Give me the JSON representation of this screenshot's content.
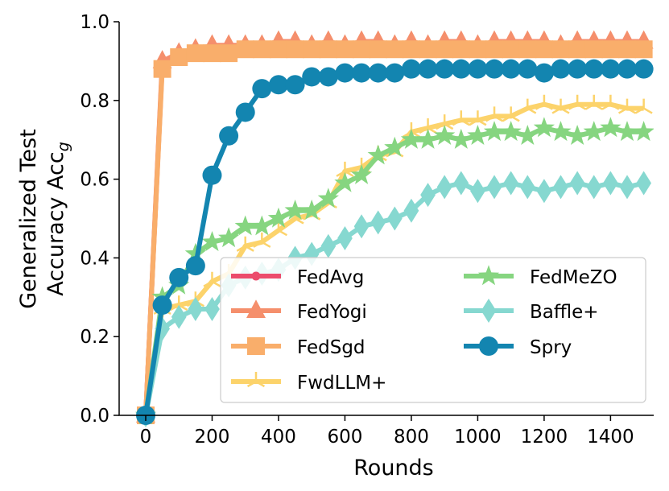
{
  "chart_data": {
    "type": "line",
    "xlabel": "Rounds",
    "ylabel_line1": "Generalized Test",
    "ylabel_line2": "Accuracy Acc",
    "ylabel_sub": "g",
    "xlim": [
      -80,
      1530
    ],
    "ylim": [
      0.0,
      1.0
    ],
    "xticks": [
      0,
      200,
      400,
      600,
      800,
      1000,
      1200,
      1400
    ],
    "yticks": [
      0.0,
      0.2,
      0.4,
      0.6,
      0.8,
      1.0
    ],
    "ytick_labels": [
      "0.0",
      "0.2",
      "0.4",
      "0.6",
      "0.8",
      "1.0"
    ],
    "grid": false,
    "legend_position": "lower-right",
    "series": [
      {
        "name": "FedAvg",
        "color": "#ec4c6c",
        "marker": "circle-small",
        "x": [
          0,
          50,
          100,
          150,
          200,
          250,
          300,
          350,
          400,
          450,
          500,
          550,
          600,
          650,
          700,
          750,
          800,
          850,
          900,
          950,
          1000,
          1050,
          1100,
          1150,
          1200,
          1250,
          1300,
          1350,
          1400,
          1450,
          1500
        ],
        "y": [
          0.0,
          0.89,
          0.91,
          0.92,
          0.93,
          0.93,
          0.93,
          0.94,
          0.94,
          0.94,
          0.94,
          0.94,
          0.94,
          0.94,
          0.94,
          0.94,
          0.94,
          0.94,
          0.94,
          0.94,
          0.94,
          0.94,
          0.94,
          0.94,
          0.94,
          0.94,
          0.94,
          0.94,
          0.94,
          0.94,
          0.94
        ]
      },
      {
        "name": "FedYogi",
        "color": "#f58f6c",
        "marker": "triangle",
        "x": [
          0,
          50,
          100,
          150,
          200,
          250,
          300,
          350,
          400,
          450,
          500,
          550,
          600,
          650,
          700,
          750,
          800,
          850,
          900,
          950,
          1000,
          1050,
          1100,
          1150,
          1200,
          1250,
          1300,
          1350,
          1400,
          1450,
          1500
        ],
        "y": [
          0.0,
          0.9,
          0.92,
          0.93,
          0.94,
          0.94,
          0.94,
          0.94,
          0.95,
          0.95,
          0.94,
          0.95,
          0.94,
          0.95,
          0.95,
          0.94,
          0.95,
          0.94,
          0.95,
          0.95,
          0.94,
          0.95,
          0.95,
          0.95,
          0.95,
          0.94,
          0.95,
          0.95,
          0.95,
          0.95,
          0.95
        ]
      },
      {
        "name": "FedSgd",
        "color": "#f9ae6b",
        "marker": "square",
        "x": [
          0,
          50,
          100,
          150,
          200,
          250,
          300,
          350,
          400,
          450,
          500,
          550,
          600,
          650,
          700,
          750,
          800,
          850,
          900,
          950,
          1000,
          1050,
          1100,
          1150,
          1200,
          1250,
          1300,
          1350,
          1400,
          1450,
          1500
        ],
        "y": [
          0.0,
          0.88,
          0.91,
          0.92,
          0.92,
          0.92,
          0.93,
          0.93,
          0.93,
          0.93,
          0.93,
          0.93,
          0.93,
          0.93,
          0.93,
          0.93,
          0.93,
          0.93,
          0.93,
          0.93,
          0.93,
          0.93,
          0.93,
          0.93,
          0.93,
          0.93,
          0.93,
          0.93,
          0.93,
          0.93,
          0.93
        ]
      },
      {
        "name": "FwdLLM+",
        "color": "#fcd36b",
        "marker": "tri",
        "x": [
          0,
          50,
          100,
          150,
          200,
          250,
          300,
          350,
          400,
          450,
          500,
          550,
          600,
          650,
          700,
          750,
          800,
          850,
          900,
          950,
          1000,
          1050,
          1100,
          1150,
          1200,
          1250,
          1300,
          1350,
          1400,
          1450,
          1500
        ],
        "y": [
          0.0,
          0.27,
          0.28,
          0.29,
          0.34,
          0.36,
          0.43,
          0.44,
          0.47,
          0.5,
          0.51,
          0.54,
          0.62,
          0.63,
          0.66,
          0.67,
          0.72,
          0.73,
          0.74,
          0.75,
          0.75,
          0.76,
          0.76,
          0.78,
          0.79,
          0.78,
          0.79,
          0.79,
          0.79,
          0.78,
          0.78
        ]
      },
      {
        "name": "FedMeZO",
        "color": "#86d580",
        "marker": "star",
        "x": [
          0,
          50,
          100,
          150,
          200,
          250,
          300,
          350,
          400,
          450,
          500,
          550,
          600,
          650,
          700,
          750,
          800,
          850,
          900,
          950,
          1000,
          1050,
          1100,
          1150,
          1200,
          1250,
          1300,
          1350,
          1400,
          1450,
          1500
        ],
        "y": [
          0.0,
          0.3,
          0.33,
          0.41,
          0.44,
          0.45,
          0.48,
          0.48,
          0.5,
          0.52,
          0.52,
          0.55,
          0.59,
          0.61,
          0.66,
          0.68,
          0.7,
          0.7,
          0.71,
          0.7,
          0.71,
          0.72,
          0.72,
          0.71,
          0.73,
          0.72,
          0.71,
          0.72,
          0.73,
          0.72,
          0.72
        ]
      },
      {
        "name": "Baffle+",
        "color": "#86d8d0",
        "marker": "diamond",
        "x": [
          0,
          50,
          100,
          150,
          200,
          250,
          300,
          350,
          400,
          450,
          500,
          550,
          600,
          650,
          700,
          750,
          800,
          850,
          900,
          950,
          1000,
          1050,
          1100,
          1150,
          1200,
          1250,
          1300,
          1350,
          1400,
          1450,
          1500
        ],
        "y": [
          0.0,
          0.22,
          0.25,
          0.27,
          0.27,
          0.33,
          0.35,
          0.36,
          0.37,
          0.4,
          0.41,
          0.43,
          0.45,
          0.48,
          0.49,
          0.5,
          0.52,
          0.56,
          0.58,
          0.59,
          0.57,
          0.58,
          0.59,
          0.58,
          0.57,
          0.58,
          0.59,
          0.58,
          0.59,
          0.58,
          0.59
        ]
      },
      {
        "name": "Spry",
        "color": "#1385b0",
        "marker": "circle",
        "x": [
          0,
          50,
          100,
          150,
          200,
          250,
          300,
          350,
          400,
          450,
          500,
          550,
          600,
          650,
          700,
          750,
          800,
          850,
          900,
          950,
          1000,
          1050,
          1100,
          1150,
          1200,
          1250,
          1300,
          1350,
          1400,
          1450,
          1500
        ],
        "y": [
          0.0,
          0.28,
          0.35,
          0.38,
          0.61,
          0.71,
          0.77,
          0.83,
          0.84,
          0.84,
          0.86,
          0.86,
          0.87,
          0.87,
          0.87,
          0.87,
          0.88,
          0.88,
          0.88,
          0.88,
          0.88,
          0.88,
          0.88,
          0.88,
          0.87,
          0.88,
          0.88,
          0.88,
          0.88,
          0.88,
          0.88
        ]
      }
    ]
  }
}
